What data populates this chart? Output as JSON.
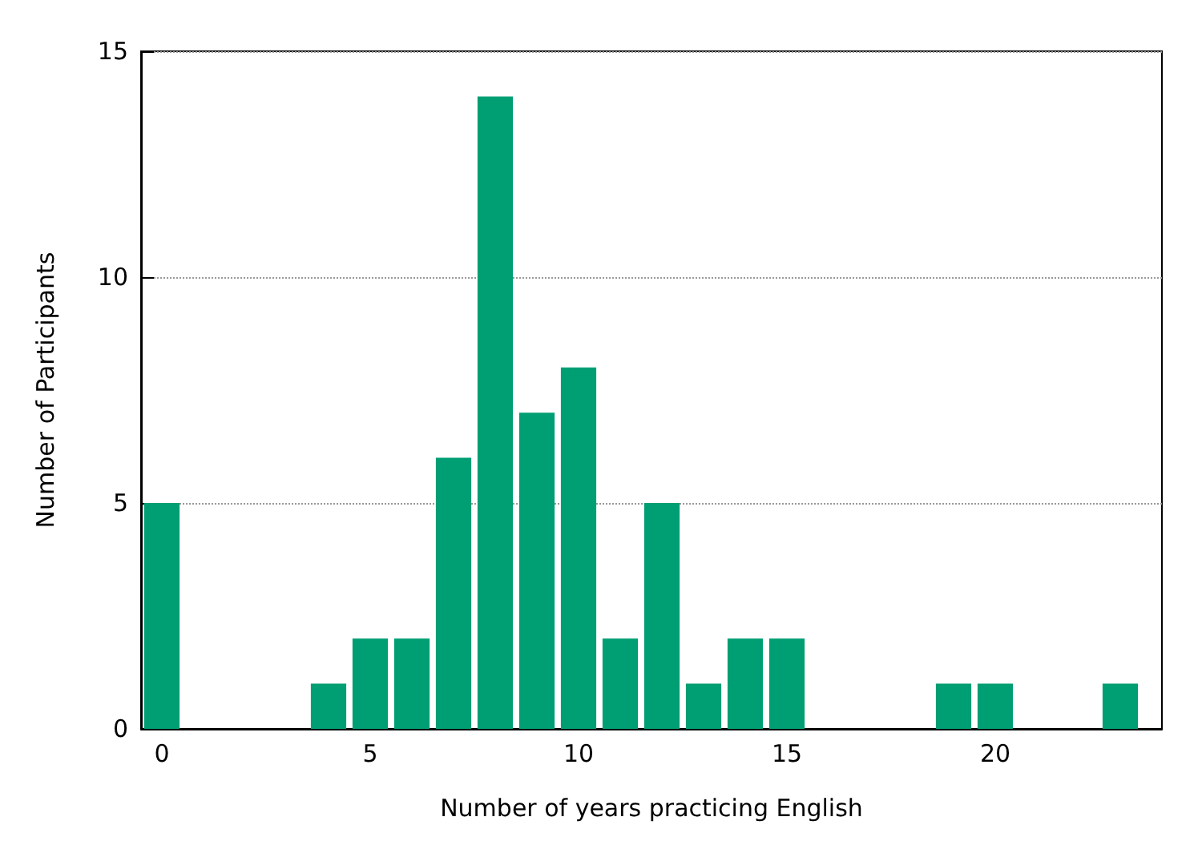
{
  "chart_data": {
    "type": "bar",
    "xlabel": "Number of years practicing English",
    "ylabel": "Number of Participants",
    "x": [
      0,
      4,
      5,
      6,
      7,
      8,
      9,
      10,
      11,
      12,
      13,
      14,
      15,
      19,
      20,
      23
    ],
    "values": [
      5,
      1,
      2,
      2,
      6,
      14,
      7,
      8,
      2,
      5,
      1,
      2,
      2,
      1,
      1,
      1
    ],
    "color": "#009e73",
    "xlim": [
      -0.5,
      24
    ],
    "ylim": [
      0,
      15
    ],
    "xticks": [
      0,
      5,
      10,
      15,
      20
    ],
    "yticks": [
      0,
      5,
      10,
      15
    ],
    "grid": "y"
  }
}
